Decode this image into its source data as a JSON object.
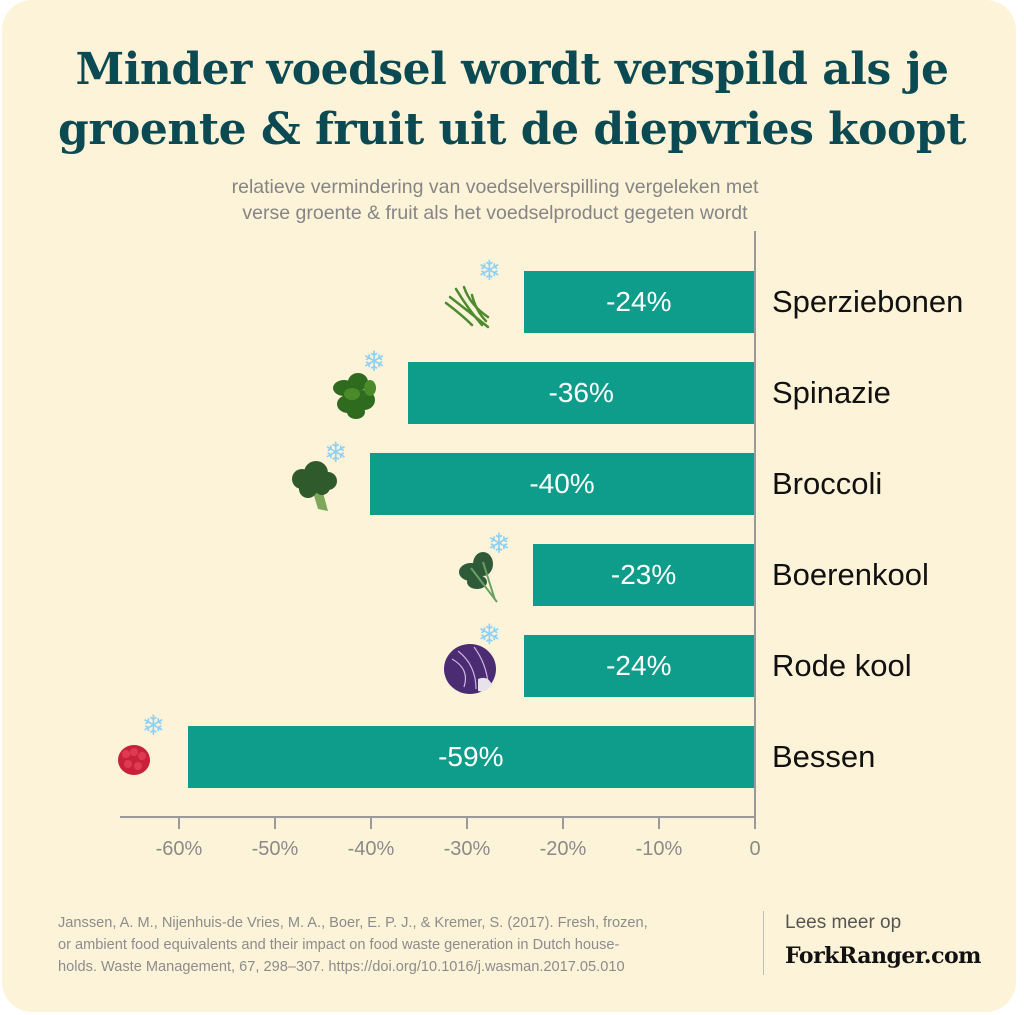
{
  "header": {
    "title_line1": "Minder voedsel wordt verspild als je",
    "title_line2": "groente & fruit uit de diepvries koopt",
    "subtitle_line1": "relatieve vermindering van voedselverspilling vergeleken met",
    "subtitle_line2": "verse groente & fruit als het voedselproduct gegeten wordt"
  },
  "colors": {
    "background": "#fdf3d8",
    "bar": "#0e9c8b",
    "title": "#0b4a52",
    "axis": "#9a9a9a",
    "snowflake": "#8fd0f5"
  },
  "bars": [
    {
      "category": "Sperziebonen",
      "value": -24,
      "label": "-24%",
      "icon": "green-beans-icon"
    },
    {
      "category": "Spinazie",
      "value": -36,
      "label": "-36%",
      "icon": "spinach-icon"
    },
    {
      "category": "Broccoli",
      "value": -40,
      "label": "-40%",
      "icon": "broccoli-icon"
    },
    {
      "category": "Boerenkool",
      "value": -23,
      "label": "-23%",
      "icon": "kale-icon"
    },
    {
      "category": "Rode kool",
      "value": -24,
      "label": "-24%",
      "icon": "red-cabbage-icon"
    },
    {
      "category": "Bessen",
      "value": -59,
      "label": "-59%",
      "icon": "raspberry-icon"
    }
  ],
  "axis": {
    "ticks": [
      "-60%",
      "-50%",
      "-40%",
      "-30%",
      "-20%",
      "-10%",
      "0"
    ]
  },
  "footer": {
    "reference_line1": "Janssen, A. M., Nijenhuis-de Vries, M. A., Boer, E. P. J., & Kremer, S. (2017). Fresh, frozen,",
    "reference_line2": "or ambient food equivalents and their impact on food waste generation in Dutch house-",
    "reference_line3": "holds. Waste Management, 67, 298–307. https://doi.org/10.1016/j.wasman.2017.05.010",
    "read_more": "Lees meer op",
    "brand": "ForkRanger.com"
  },
  "chart_data": {
    "type": "bar",
    "orientation": "horizontal",
    "title": "Minder voedsel wordt verspild als je groente & fruit uit de diepvries koopt",
    "subtitle": "relatieve vermindering van voedselverspilling vergeleken met verse groente & fruit als het voedselproduct gegeten wordt",
    "categories": [
      "Sperziebonen",
      "Spinazie",
      "Broccoli",
      "Boerenkool",
      "Rode kool",
      "Bessen"
    ],
    "values": [
      -24,
      -36,
      -40,
      -23,
      -24,
      -59
    ],
    "data_labels": [
      "-24%",
      "-36%",
      "-40%",
      "-23%",
      "-24%",
      "-59%"
    ],
    "xlabel": "",
    "ylabel": "",
    "xlim": [
      -66,
      0
    ],
    "xticks": [
      "-60%",
      "-50%",
      "-40%",
      "-30%",
      "-20%",
      "-10%",
      "0"
    ],
    "grid": false,
    "legend": null,
    "annotations": [
      "snowflake icon next to each bar indicating frozen product"
    ]
  }
}
